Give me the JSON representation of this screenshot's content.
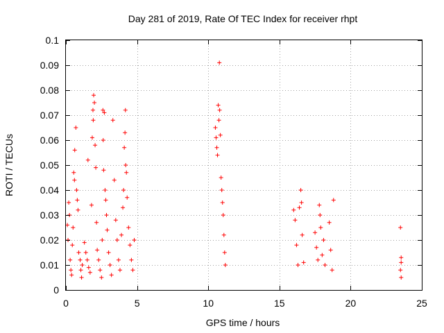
{
  "chart_data": {
    "type": "scatter",
    "title": "Day 281 of 2019, Rate Of TEC Index for receiver rhpt",
    "xlabel": "GPS time / hours",
    "ylabel": "ROTI / TECUs",
    "xlim": [
      0,
      25
    ],
    "ylim": [
      0,
      0.1
    ],
    "x_ticks": [
      "0",
      "5",
      "10",
      "15",
      "20",
      "25"
    ],
    "x_tick_values": [
      0,
      5,
      10,
      15,
      20,
      25
    ],
    "y_ticks": [
      "0",
      "0.01",
      "0.02",
      "0.03",
      "0.04",
      "0.05",
      "0.06",
      "0.07",
      "0.08",
      "0.09",
      "0.1"
    ],
    "y_tick_values": [
      0,
      0.01,
      0.02,
      0.03,
      0.04,
      0.05,
      0.06,
      0.07,
      0.08,
      0.09,
      0.1
    ],
    "grid": true,
    "marker": "plus",
    "series": [
      {
        "name": "ROTI",
        "color": "#ff0000",
        "points": [
          [
            0.1,
            0.026
          ],
          [
            0.15,
            0.02
          ],
          [
            0.2,
            0.035
          ],
          [
            0.25,
            0.03
          ],
          [
            0.3,
            0.012
          ],
          [
            0.35,
            0.008
          ],
          [
            0.4,
            0.006
          ],
          [
            0.45,
            0.018
          ],
          [
            0.5,
            0.025
          ],
          [
            0.55,
            0.047
          ],
          [
            0.6,
            0.044
          ],
          [
            0.62,
            0.056
          ],
          [
            0.7,
            0.065
          ],
          [
            0.75,
            0.04
          ],
          [
            0.8,
            0.036
          ],
          [
            0.85,
            0.032
          ],
          [
            0.9,
            0.015
          ],
          [
            1.0,
            0.012
          ],
          [
            1.05,
            0.008
          ],
          [
            1.1,
            0.005
          ],
          [
            1.15,
            0.01
          ],
          [
            1.3,
            0.019
          ],
          [
            1.4,
            0.015
          ],
          [
            1.5,
            0.012
          ],
          [
            1.55,
            0.052
          ],
          [
            1.6,
            0.009
          ],
          [
            1.7,
            0.007
          ],
          [
            1.8,
            0.034
          ],
          [
            1.85,
            0.061
          ],
          [
            1.9,
            0.072
          ],
          [
            1.92,
            0.068
          ],
          [
            1.95,
            0.078
          ],
          [
            2.0,
            0.075
          ],
          [
            2.05,
            0.058
          ],
          [
            2.1,
            0.049
          ],
          [
            2.15,
            0.027
          ],
          [
            2.2,
            0.016
          ],
          [
            2.3,
            0.012
          ],
          [
            2.4,
            0.008
          ],
          [
            2.5,
            0.005
          ],
          [
            2.55,
            0.02
          ],
          [
            2.6,
            0.072
          ],
          [
            2.62,
            0.06
          ],
          [
            2.65,
            0.048
          ],
          [
            2.7,
            0.071
          ],
          [
            2.75,
            0.04
          ],
          [
            2.8,
            0.036
          ],
          [
            2.85,
            0.03
          ],
          [
            2.9,
            0.024
          ],
          [
            3.0,
            0.015
          ],
          [
            3.1,
            0.01
          ],
          [
            3.2,
            0.006
          ],
          [
            3.3,
            0.068
          ],
          [
            3.4,
            0.044
          ],
          [
            3.5,
            0.028
          ],
          [
            3.6,
            0.02
          ],
          [
            3.7,
            0.012
          ],
          [
            3.8,
            0.008
          ],
          [
            3.9,
            0.022
          ],
          [
            4.0,
            0.033
          ],
          [
            4.05,
            0.04
          ],
          [
            4.1,
            0.057
          ],
          [
            4.15,
            0.063
          ],
          [
            4.18,
            0.072
          ],
          [
            4.2,
            0.05
          ],
          [
            4.25,
            0.047
          ],
          [
            4.3,
            0.037
          ],
          [
            4.4,
            0.025
          ],
          [
            4.5,
            0.018
          ],
          [
            4.6,
            0.012
          ],
          [
            4.7,
            0.008
          ],
          [
            4.8,
            0.02
          ],
          [
            10.5,
            0.065
          ],
          [
            10.55,
            0.061
          ],
          [
            10.6,
            0.057
          ],
          [
            10.65,
            0.054
          ],
          [
            10.7,
            0.074
          ],
          [
            10.75,
            0.068
          ],
          [
            10.78,
            0.091
          ],
          [
            10.8,
            0.072
          ],
          [
            10.85,
            0.062
          ],
          [
            10.9,
            0.045
          ],
          [
            10.95,
            0.04
          ],
          [
            11.0,
            0.035
          ],
          [
            11.05,
            0.03
          ],
          [
            11.1,
            0.022
          ],
          [
            11.15,
            0.015
          ],
          [
            11.2,
            0.01
          ],
          [
            16.0,
            0.032
          ],
          [
            16.1,
            0.028
          ],
          [
            16.2,
            0.018
          ],
          [
            16.3,
            0.01
          ],
          [
            16.4,
            0.033
          ],
          [
            16.5,
            0.04
          ],
          [
            16.55,
            0.035
          ],
          [
            16.6,
            0.022
          ],
          [
            16.7,
            0.011
          ],
          [
            17.5,
            0.023
          ],
          [
            17.6,
            0.017
          ],
          [
            17.7,
            0.012
          ],
          [
            17.8,
            0.034
          ],
          [
            17.85,
            0.03
          ],
          [
            17.9,
            0.025
          ],
          [
            18.0,
            0.014
          ],
          [
            18.1,
            0.02
          ],
          [
            18.2,
            0.01
          ],
          [
            18.5,
            0.027
          ],
          [
            18.6,
            0.016
          ],
          [
            18.7,
            0.008
          ],
          [
            18.8,
            0.036
          ],
          [
            23.5,
            0.025
          ],
          [
            23.55,
            0.013
          ],
          [
            23.55,
            0.011
          ],
          [
            23.5,
            0.008
          ],
          [
            23.55,
            0.005
          ]
        ]
      }
    ]
  }
}
